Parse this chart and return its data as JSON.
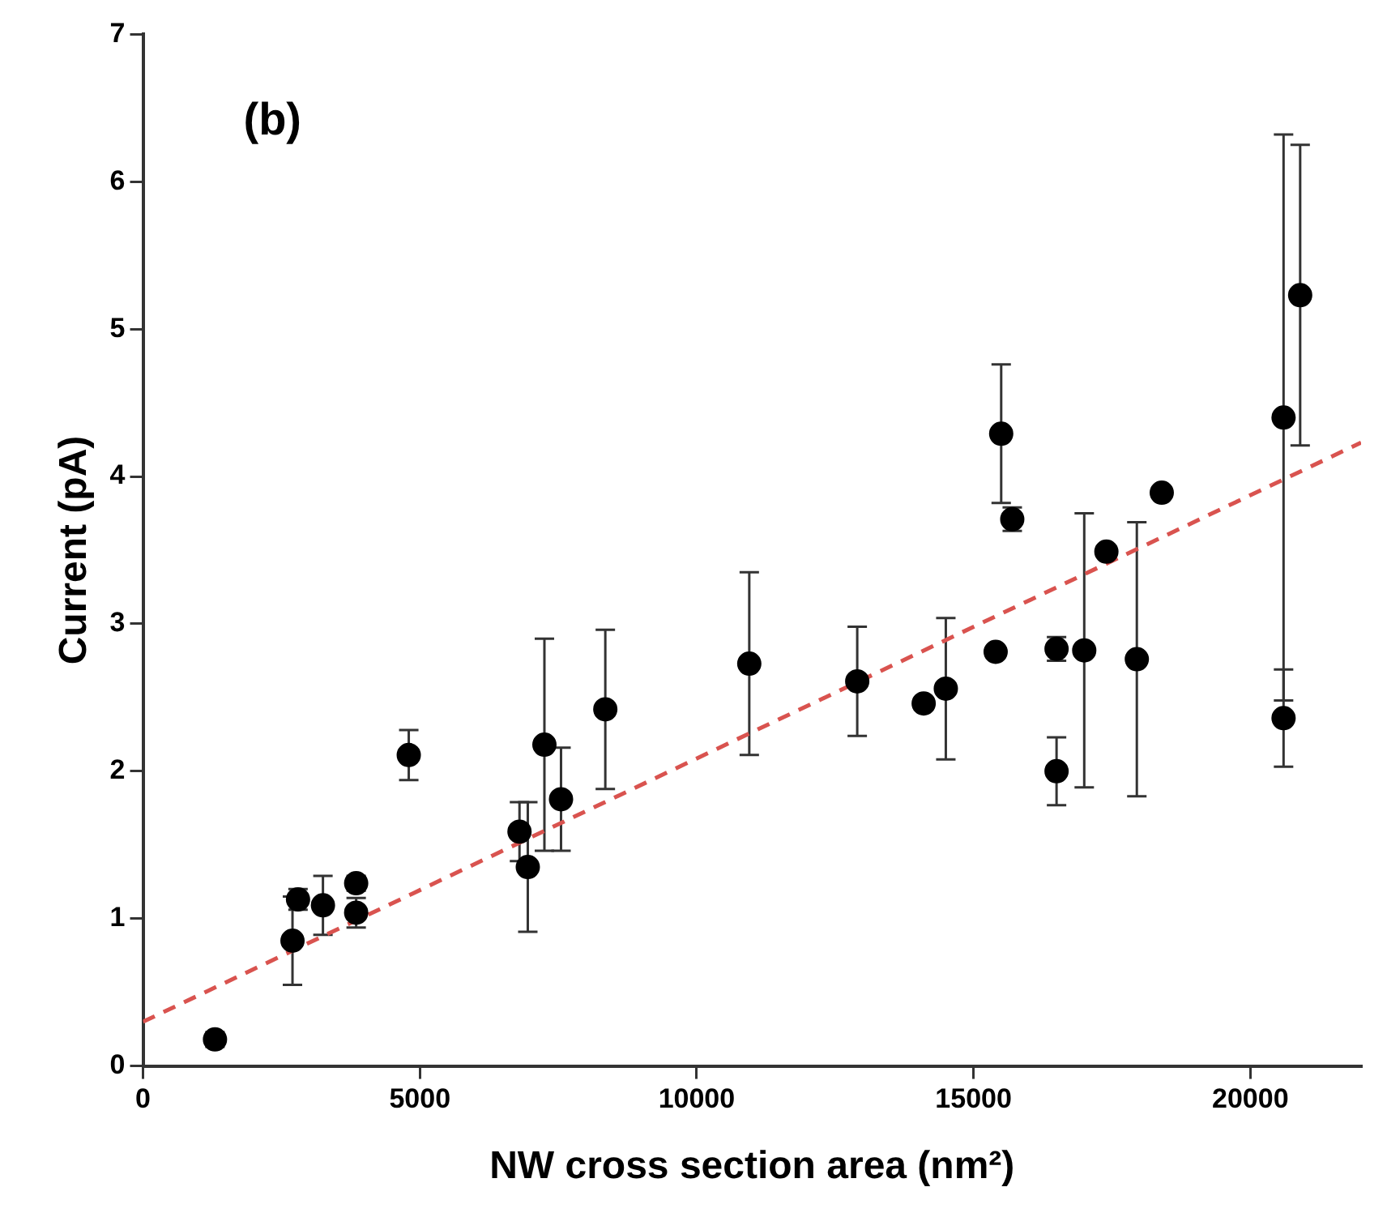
{
  "chart_data": {
    "type": "scatter",
    "xlabel": "NW cross section area (nm²)",
    "ylabel": "Current (pA)",
    "annotations": [
      "(b)"
    ],
    "xlim": [
      0,
      22000
    ],
    "xticks": [
      0,
      5000,
      10000,
      15000,
      20000
    ],
    "ylim": [
      0,
      7
    ],
    "yticks": [
      0,
      1,
      2,
      3,
      4,
      5,
      6,
      7
    ],
    "grid": false,
    "marker": "circle",
    "series": [
      {
        "type": "scatter",
        "color": "#000000",
        "x": [
          1300,
          2700,
          2800,
          3250,
          3850,
          3850,
          4800,
          6800,
          6950,
          7250,
          7550,
          8350,
          10950,
          12900,
          14100,
          14500,
          15400,
          15500,
          15700,
          16500,
          16500,
          17000,
          17400,
          17950,
          18400,
          20600,
          20600,
          20900
        ],
        "values": [
          0.18,
          0.85,
          1.13,
          1.09,
          1.24,
          1.04,
          2.11,
          1.59,
          1.35,
          2.18,
          1.81,
          2.42,
          2.73,
          2.61,
          2.46,
          2.56,
          2.81,
          4.29,
          3.71,
          2.83,
          2.0,
          2.82,
          3.49,
          2.76,
          3.89,
          4.4,
          2.36,
          5.23
        ],
        "errors": [
          0.05,
          0.3,
          0.07,
          0.2,
          0.05,
          0.1,
          0.17,
          0.2,
          0.44,
          0.72,
          0.35,
          0.54,
          0.62,
          0.37,
          null,
          0.48,
          0.03,
          0.47,
          0.08,
          0.08,
          0.23,
          0.93,
          null,
          0.93,
          0.03,
          1.92,
          0.33,
          1.02
        ]
      },
      {
        "type": "line",
        "color": "#d9534f",
        "line_style": "dashed",
        "marker": "none",
        "x": [
          0,
          22000
        ],
        "values": [
          0.3,
          4.23
        ]
      }
    ]
  }
}
